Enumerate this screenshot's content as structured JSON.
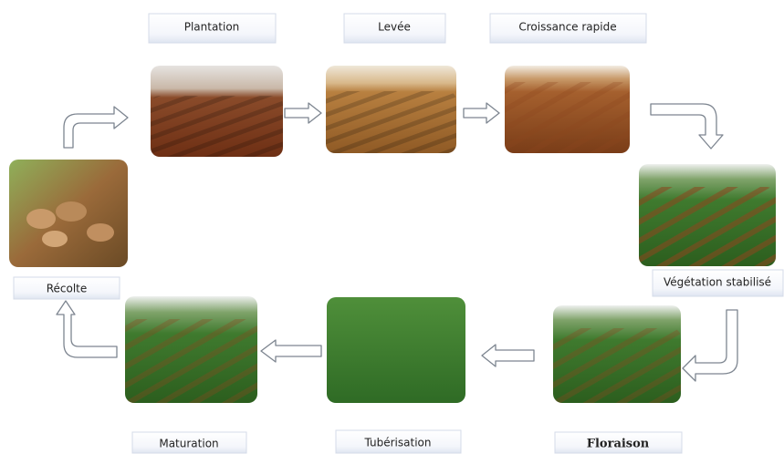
{
  "stages": [
    {
      "label": "Plantation"
    },
    {
      "label": "Levée"
    },
    {
      "label": "Croissance rapide"
    },
    {
      "label": "Végétation stabilisé"
    },
    {
      "label": "Floraison"
    },
    {
      "label": "Tubérisation"
    },
    {
      "label": "Maturation"
    },
    {
      "label": "Récolte"
    }
  ]
}
